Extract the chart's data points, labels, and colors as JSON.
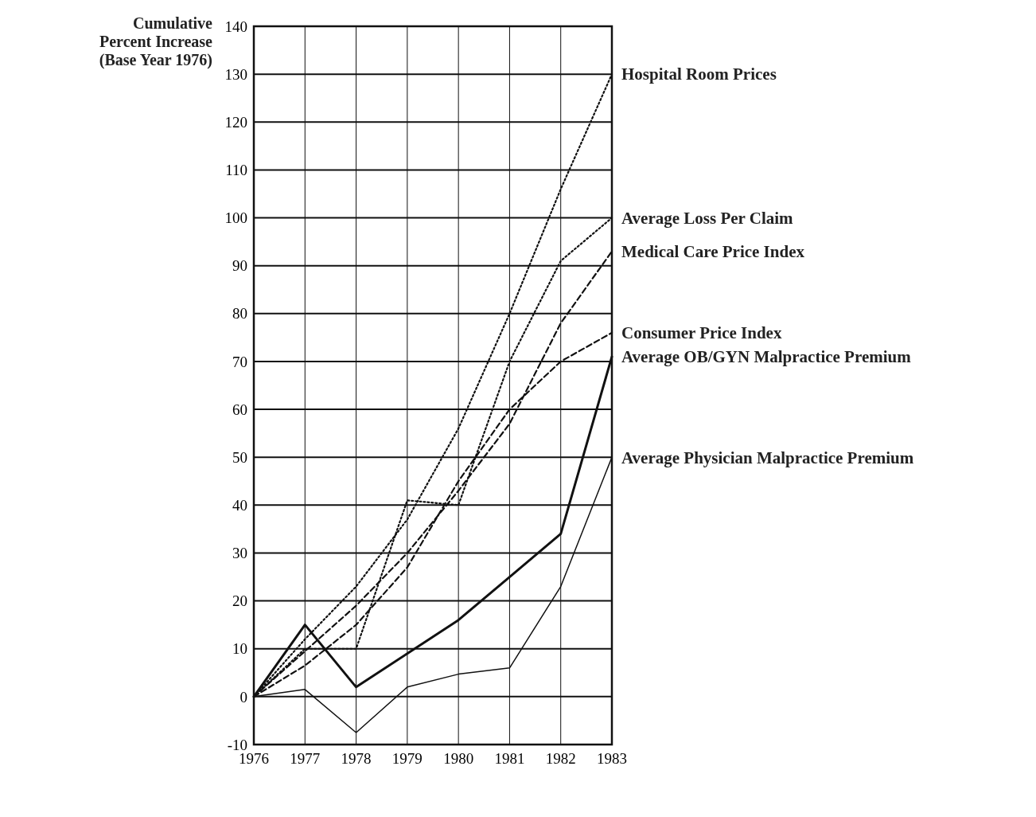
{
  "chart_data": {
    "type": "line",
    "ylabel": "Cumulative Percent Increase (Base Year 1976)",
    "x": [
      1976,
      1977,
      1978,
      1979,
      1980,
      1981,
      1982,
      1983
    ],
    "xlim": [
      1976,
      1983
    ],
    "xticks": [
      1976,
      1977,
      1978,
      1979,
      1980,
      1981,
      1982,
      1983
    ],
    "ylim": [
      -10,
      140
    ],
    "yticks": [
      -10,
      0,
      10,
      20,
      30,
      40,
      50,
      60,
      70,
      80,
      90,
      100,
      110,
      120,
      130,
      140
    ],
    "grid": true,
    "legend": false,
    "marker": "none",
    "series": [
      {
        "name": "Hospital Room Prices",
        "color": "#111111",
        "line_style": "dotted",
        "values": [
          0,
          12,
          23,
          37,
          56,
          80,
          106,
          130
        ]
      },
      {
        "name": "Average Loss Per Claim",
        "color": "#111111",
        "line_style": "dotted",
        "values": [
          0,
          10,
          10,
          41,
          40,
          70,
          91,
          100
        ]
      },
      {
        "name": "Medical Care Price Index",
        "color": "#111111",
        "line_style": "dashed",
        "values": [
          0,
          9.5,
          19,
          30,
          43,
          57,
          78,
          93
        ]
      },
      {
        "name": "Consumer Price Index",
        "color": "#111111",
        "line_style": "dashed",
        "values": [
          0,
          6.5,
          15,
          27,
          45,
          60,
          70,
          76
        ]
      },
      {
        "name": "Average OB/GYN Malpractice Premium",
        "color": "#111111",
        "line_style": "solid",
        "values": [
          0,
          15,
          2,
          9,
          16,
          25,
          34,
          71
        ]
      },
      {
        "name": "Average Physician Malpractice Premium",
        "color": "#111111",
        "line_style": "solid",
        "values": [
          0,
          1.5,
          -7.5,
          2,
          4.7,
          6,
          23,
          50
        ]
      }
    ]
  }
}
